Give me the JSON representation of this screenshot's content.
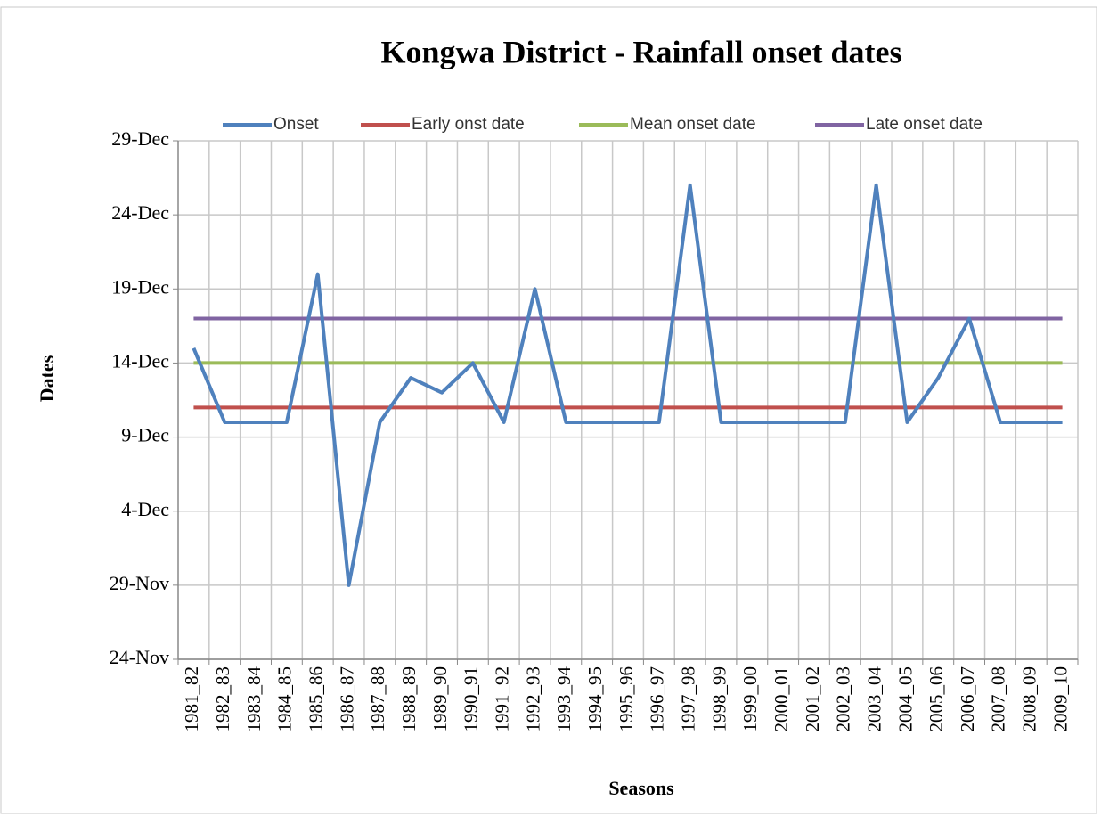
{
  "chart_data": {
    "type": "line",
    "title": "Kongwa District - Rainfall onset dates",
    "x_label": "Seasons",
    "y_label": "Dates",
    "categories": [
      "1981_82",
      "1982_83",
      "1983_84",
      "1984_85",
      "1985_86",
      "1986_87",
      "1987_88",
      "1988_89",
      "1989_90",
      "1990_91",
      "1991_92",
      "1992_93",
      "1993_94",
      "1994_95",
      "1995_96",
      "1996_97",
      "1997_98",
      "1998_99",
      "1999_00",
      "2000_01",
      "2001_02",
      "2002_03",
      "2003_04",
      "2004_05",
      "2005_06",
      "2006_07",
      "2007_08",
      "2008_09",
      "2009_10"
    ],
    "series": [
      {
        "name": "Onset",
        "color": "#4f81bd",
        "values": [
          45,
          40,
          40,
          40,
          50,
          29,
          40,
          43,
          42,
          44,
          40,
          49,
          40,
          40,
          40,
          40,
          56,
          40,
          40,
          40,
          40,
          40,
          56,
          40,
          43,
          47,
          40,
          40,
          40
        ]
      },
      {
        "name": "Early onst date",
        "color": "#c0504d",
        "values": [
          41,
          41,
          41,
          41,
          41,
          41,
          41,
          41,
          41,
          41,
          41,
          41,
          41,
          41,
          41,
          41,
          41,
          41,
          41,
          41,
          41,
          41,
          41,
          41,
          41,
          41,
          41,
          41,
          41
        ]
      },
      {
        "name": "Mean onset date",
        "color": "#9bbb59",
        "values": [
          44,
          44,
          44,
          44,
          44,
          44,
          44,
          44,
          44,
          44,
          44,
          44,
          44,
          44,
          44,
          44,
          44,
          44,
          44,
          44,
          44,
          44,
          44,
          44,
          44,
          44,
          44,
          44,
          44
        ]
      },
      {
        "name": "Late onset date",
        "color": "#8064a2",
        "values": [
          47,
          47,
          47,
          47,
          47,
          47,
          47,
          47,
          47,
          47,
          47,
          47,
          47,
          47,
          47,
          47,
          47,
          47,
          47,
          47,
          47,
          47,
          47,
          47,
          47,
          47,
          47,
          47,
          47
        ]
      }
    ],
    "ylim": [
      24,
      59
    ],
    "yticks": [
      {
        "value": 24,
        "label": "24-Nov"
      },
      {
        "value": 29,
        "label": "29-Nov"
      },
      {
        "value": 34,
        "label": "4-Dec"
      },
      {
        "value": 39,
        "label": "9-Dec"
      },
      {
        "value": 44,
        "label": "14-Dec"
      },
      {
        "value": 49,
        "label": "19-Dec"
      },
      {
        "value": 54,
        "label": "24-Dec"
      },
      {
        "value": 59,
        "label": "29-Dec"
      }
    ],
    "grid": true,
    "legend": "top"
  }
}
